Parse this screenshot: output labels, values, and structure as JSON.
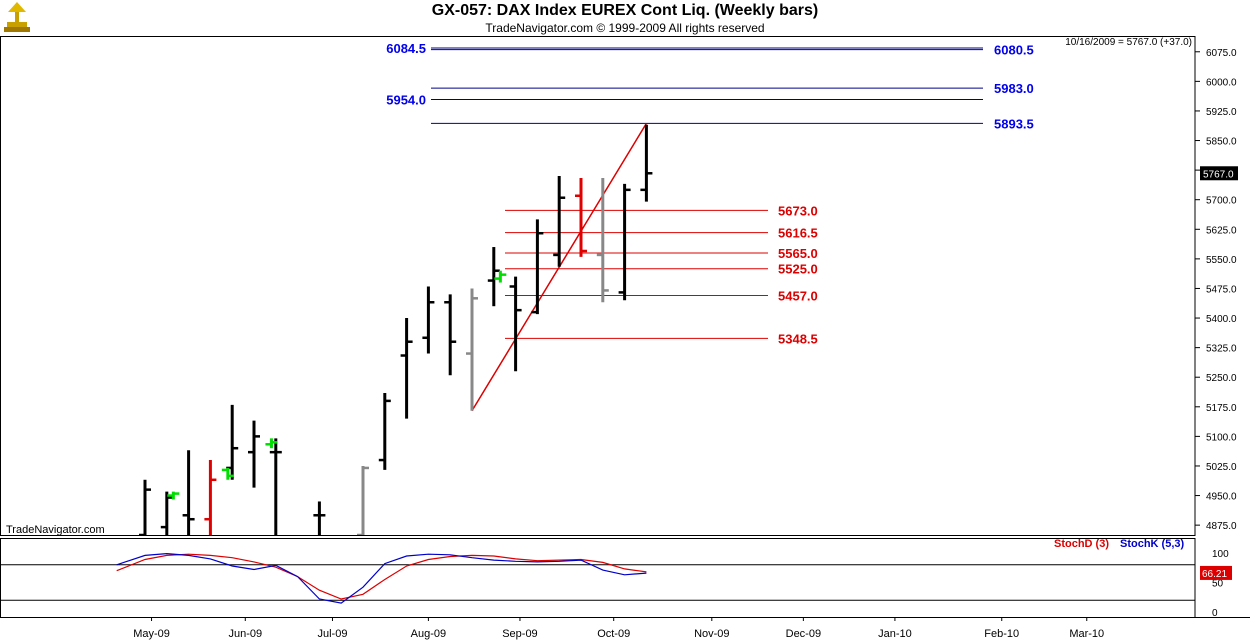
{
  "header": {
    "title": "GX-057:  DAX Index EUREX Cont Liq.  (Weekly bars)",
    "subtitle": "TradeNavigator.com © 1999-2009 All rights reserved",
    "last_quote": "10/16/2009 = 5767.0 (+37.0)",
    "watermark": "TradeNavigator.com"
  },
  "colors": {
    "bar_default": "#000000",
    "bar_red": "#e00000",
    "bar_gray": "#888888",
    "bar_green": "#00dd00",
    "blue_line": "#000088",
    "blue_label": "#0000ee",
    "red_line": "#dd0000",
    "stochD": "#dd0000",
    "stochK": "#0000cc"
  },
  "chart_data": [
    {
      "type": "ohlc",
      "title": "GX-057:  DAX Index EUREX Cont Liq.  (Weekly bars)",
      "price_axis": {
        "ylim": [
          4850,
          6115
        ],
        "ticks": [
          "6075.0",
          "6000.0",
          "5925.0",
          "5850.0",
          "5775.0",
          "5700.0",
          "5625.0",
          "5550.0",
          "5475.0",
          "5400.0",
          "5325.0",
          "5250.0",
          "5175.0",
          "5100.0",
          "5025.0",
          "4950.0",
          "4875.0"
        ],
        "tick_values": [
          6075,
          6000,
          5925,
          5850,
          5775,
          5700,
          5625,
          5550,
          5475,
          5400,
          5325,
          5250,
          5175,
          5100,
          5025,
          4950,
          4875
        ],
        "last_price_label": "5767.0",
        "last_price": 5767
      },
      "time_axis": {
        "labels": [
          "May-09",
          "Jun-09",
          "Jul-09",
          "Aug-09",
          "Sep-09",
          "Oct-09",
          "Nov-09",
          "Dec-09",
          "Jan-10",
          "Feb-10",
          "Mar-10"
        ],
        "label_weeks": [
          1.3,
          5.6,
          9.6,
          14.0,
          18.2,
          22.5,
          27.0,
          31.2,
          35.4,
          40.3,
          44.2
        ]
      },
      "bars": [
        {
          "week": 1,
          "open": 4850,
          "high": 4990,
          "low": 4850,
          "close": 4965,
          "color": "black"
        },
        {
          "week": 2,
          "open": 4870,
          "high": 4960,
          "low": 4850,
          "close": 4945,
          "color": "black"
        },
        {
          "week": 2.3,
          "open": 4950,
          "high": 4960,
          "low": 4940,
          "close": 4955,
          "color": "green"
        },
        {
          "week": 3,
          "open": 4900,
          "high": 5065,
          "low": 4850,
          "close": 4890,
          "color": "black"
        },
        {
          "week": 4,
          "open": 4890,
          "high": 5040,
          "low": 4850,
          "close": 4990,
          "color": "red"
        },
        {
          "week": 5,
          "open": 5020,
          "high": 5180,
          "low": 4990,
          "close": 5070,
          "color": "black"
        },
        {
          "week": 4.8,
          "open": 5015,
          "high": 5020,
          "low": 4990,
          "close": 5000,
          "color": "green"
        },
        {
          "week": 6,
          "open": 5060,
          "high": 5140,
          "low": 4970,
          "close": 5100,
          "color": "black"
        },
        {
          "week": 7,
          "open": 5060,
          "high": 5095,
          "low": 4850,
          "close": 5060,
          "color": "black"
        },
        {
          "week": 6.8,
          "open": 5080,
          "high": 5095,
          "low": 5070,
          "close": 5085,
          "color": "green"
        },
        {
          "week": 9,
          "open": 4900,
          "high": 4935,
          "low": 4850,
          "close": 4900,
          "color": "black"
        },
        {
          "week": 11,
          "open": 4850,
          "high": 5025,
          "low": 4850,
          "close": 5020,
          "color": "gray"
        },
        {
          "week": 12,
          "open": 5040,
          "high": 5210,
          "low": 5015,
          "close": 5190,
          "color": "black"
        },
        {
          "week": 13,
          "open": 5305,
          "high": 5400,
          "low": 5145,
          "close": 5340,
          "color": "black"
        },
        {
          "week": 14,
          "open": 5350,
          "high": 5480,
          "low": 5310,
          "close": 5440,
          "color": "black"
        },
        {
          "week": 15,
          "open": 5440,
          "high": 5460,
          "low": 5255,
          "close": 5340,
          "color": "black"
        },
        {
          "week": 16,
          "open": 5310,
          "high": 5475,
          "low": 5165,
          "close": 5450,
          "color": "gray"
        },
        {
          "week": 17,
          "open": 5495,
          "high": 5580,
          "low": 5430,
          "close": 5520,
          "color": "black"
        },
        {
          "week": 17.3,
          "open": 5500,
          "high": 5520,
          "low": 5490,
          "close": 5510,
          "color": "green"
        },
        {
          "week": 18,
          "open": 5480,
          "high": 5505,
          "low": 5265,
          "close": 5420,
          "color": "black"
        },
        {
          "week": 19,
          "open": 5415,
          "high": 5650,
          "low": 5410,
          "close": 5615,
          "color": "black"
        },
        {
          "week": 20,
          "open": 5560,
          "high": 5760,
          "low": 5530,
          "close": 5705,
          "color": "black"
        },
        {
          "week": 21,
          "open": 5710,
          "high": 5755,
          "low": 5555,
          "close": 5570,
          "color": "red"
        },
        {
          "week": 22,
          "open": 5560,
          "high": 5755,
          "low": 5440,
          "close": 5470,
          "color": "gray"
        },
        {
          "week": 23,
          "open": 5465,
          "high": 5740,
          "low": 5445,
          "close": 5725,
          "color": "black"
        },
        {
          "week": 24,
          "open": 5725,
          "high": 5890,
          "low": 5695,
          "close": 5767,
          "color": "black"
        }
      ],
      "fib_levels": [
        {
          "label": "5673.0",
          "value": 5673
        },
        {
          "label": "5616.5",
          "value": 5616.5
        },
        {
          "label": "5565.0",
          "value": 5565
        },
        {
          "label": "5525.0",
          "value": 5525
        },
        {
          "label": "5457.0",
          "value": 5457
        },
        {
          "label": "5348.5",
          "value": 5348.5
        }
      ],
      "projection_levels": [
        {
          "label": "6084.5",
          "value": 6084.5,
          "side": "left"
        },
        {
          "label": "6080.5",
          "value": 6080.5,
          "side": "right"
        },
        {
          "label": "5983.0",
          "value": 5983,
          "side": "right"
        },
        {
          "label": "5954.0",
          "value": 5954,
          "side": "left"
        },
        {
          "label": "5893.5",
          "value": 5893.5,
          "side": "right"
        }
      ],
      "trendline": {
        "from": {
          "week": 16,
          "price": 5165
        },
        "to": {
          "week": 24,
          "price": 5893.5
        }
      }
    },
    {
      "type": "line",
      "legend": [
        "StochD (3)",
        "StochK (5,3)"
      ],
      "ylim": [
        0,
        100
      ],
      "ticks": [
        "100",
        "50",
        "0"
      ],
      "tick_values": [
        100,
        50,
        0
      ],
      "reference_lines": [
        80,
        20
      ],
      "last_value_label": "66.21",
      "last_value": 66.21,
      "series": [
        {
          "name": "StochD (3)",
          "color": "#dd0000",
          "points": [
            [
              -0.3,
              70
            ],
            [
              1,
              89
            ],
            [
              2,
              96
            ],
            [
              3,
              98
            ],
            [
              4,
              96
            ],
            [
              5,
              92
            ],
            [
              6,
              85
            ],
            [
              7,
              76
            ],
            [
              8,
              60
            ],
            [
              9,
              37
            ],
            [
              10,
              22
            ],
            [
              11,
              30
            ],
            [
              12,
              55
            ],
            [
              13,
              78
            ],
            [
              14,
              89
            ],
            [
              15,
              94
            ],
            [
              16,
              96
            ],
            [
              17,
              95
            ],
            [
              18,
              90
            ],
            [
              19,
              87
            ],
            [
              20,
              88
            ],
            [
              21,
              89
            ],
            [
              22,
              84
            ],
            [
              23,
              73
            ],
            [
              24,
              68
            ]
          ]
        },
        {
          "name": "StochK (5,3)",
          "color": "#0000cc",
          "points": [
            [
              -0.3,
              80
            ],
            [
              1,
              96
            ],
            [
              2,
              99
            ],
            [
              3,
              96
            ],
            [
              4,
              90
            ],
            [
              5,
              78
            ],
            [
              6,
              72
            ],
            [
              7,
              79
            ],
            [
              8,
              60
            ],
            [
              9,
              22
            ],
            [
              10,
              15
            ],
            [
              11,
              42
            ],
            [
              12,
              82
            ],
            [
              13,
              95
            ],
            [
              14,
              98
            ],
            [
              15,
              97
            ],
            [
              16,
              92
            ],
            [
              17,
              88
            ],
            [
              18,
              86
            ],
            [
              19,
              85
            ],
            [
              20,
              86
            ],
            [
              21,
              88
            ],
            [
              22,
              71
            ],
            [
              23,
              63
            ],
            [
              24,
              66
            ]
          ]
        }
      ]
    }
  ]
}
